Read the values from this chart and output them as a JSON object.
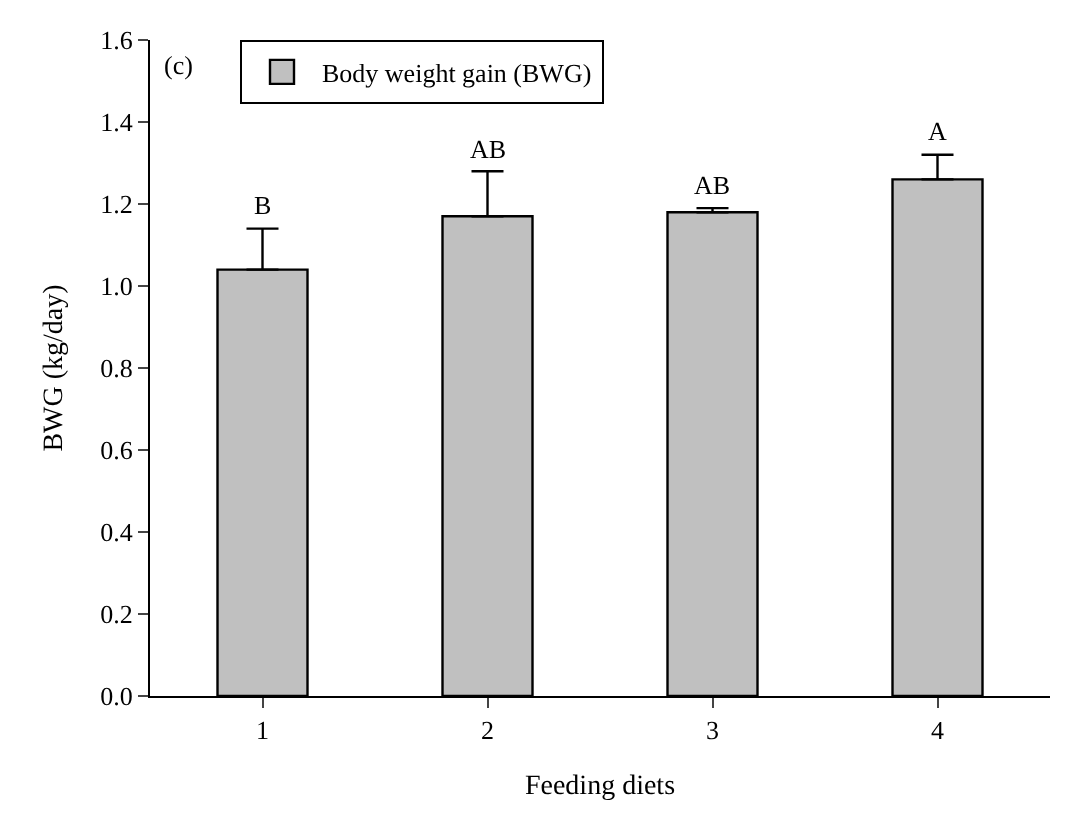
{
  "chart_data": {
    "type": "bar",
    "xlabel": "Feeding diets",
    "ylabel": "BWG (kg/day)",
    "categories": [
      "1",
      "2",
      "3",
      "4"
    ],
    "series": [
      {
        "name": "Body weight gain (BWG)",
        "color": "#c0c0c0",
        "values": [
          1.04,
          1.17,
          1.18,
          1.26
        ],
        "errors": [
          [
            1.04,
            1.14
          ],
          [
            1.17,
            1.28
          ],
          [
            1.18,
            1.19
          ],
          [
            1.26,
            1.32
          ]
        ]
      }
    ],
    "ylim": [
      0,
      1.6
    ],
    "yticks": [
      {
        "value": 0,
        "label": "0.0"
      },
      0.2,
      0.4,
      0.6,
      0.8,
      {
        "value": 1,
        "label": "1.0"
      },
      1.2,
      1.4,
      1.6
    ],
    "annotations": [
      "(c)",
      {
        "text": "B",
        "x": "1",
        "y": 1.14
      },
      {
        "text": "AB",
        "x": "2",
        "y": 1.28
      },
      {
        "text": "AB",
        "x": "3",
        "y": 1.19
      },
      {
        "text": "A",
        "x": "4",
        "y": 1.32
      }
    ],
    "legend": "top left"
  }
}
